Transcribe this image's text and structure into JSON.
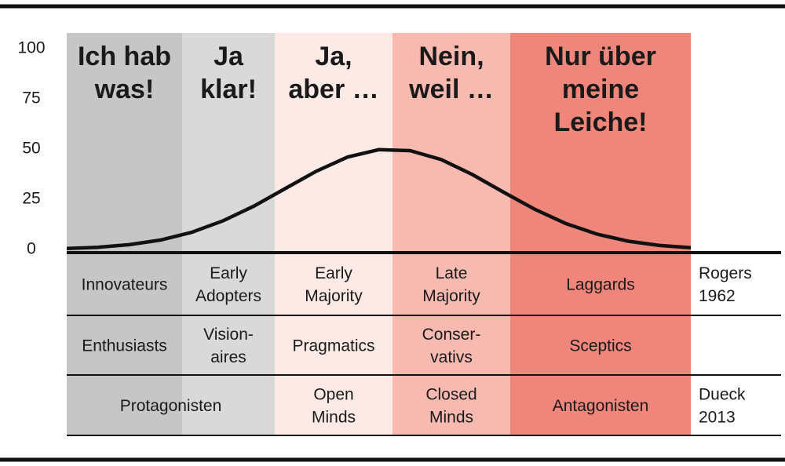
{
  "chart_data": {
    "type": "line",
    "ylim": [
      0,
      100
    ],
    "yticks": [
      0,
      25,
      50,
      75,
      100
    ],
    "xlim": [
      0,
      100
    ],
    "x": [
      0,
      5,
      10,
      15,
      20,
      25,
      30,
      35,
      40,
      45,
      50,
      55,
      60,
      65,
      70,
      75,
      80,
      85,
      90,
      95,
      100
    ],
    "values": [
      0.5,
      1.1,
      2.4,
      4.7,
      8.5,
      14.2,
      21.6,
      30.3,
      39,
      46,
      49.7,
      49.2,
      44.8,
      37.3,
      28.5,
      20,
      12.9,
      7.6,
      4.1,
      2,
      0.9
    ],
    "color": "#111111",
    "bands": [
      {
        "heading": [
          "Ich hab",
          "was!"
        ],
        "color": "#c6c6c6"
      },
      {
        "heading": [
          "Ja",
          "klar!"
        ],
        "color": "#d9d9d9"
      },
      {
        "heading": [
          "Ja,",
          "aber …"
        ],
        "color": "#fde9e5"
      },
      {
        "heading": [
          "Nein,",
          "weil …"
        ],
        "color": "#f7b9b0"
      },
      {
        "heading": [
          "Nur über",
          "meine",
          "Leiche!"
        ],
        "color": "#ef867b"
      }
    ],
    "table": {
      "rows": [
        {
          "cells": [
            [
              "Innovateurs"
            ],
            [
              "Early",
              "Adopters"
            ],
            [
              "Early",
              "Majority"
            ],
            [
              "Late",
              "Majority"
            ],
            [
              "Laggards"
            ]
          ],
          "label": [
            "Rogers",
            "1962"
          ]
        },
        {
          "cells": [
            [
              "Enthusiasts"
            ],
            [
              "Vision-",
              "aires"
            ],
            [
              "Pragmatics"
            ],
            [
              "Conser-",
              "vativs"
            ],
            [
              "Sceptics"
            ]
          ]
        },
        {
          "cells": [
            [
              "Protagonisten"
            ],
            [
              "Open",
              "Minds"
            ],
            [
              "Closed",
              "Minds"
            ],
            [
              "Antagonisten"
            ]
          ],
          "label": [
            "Dueck",
            "2013"
          ]
        }
      ]
    }
  }
}
